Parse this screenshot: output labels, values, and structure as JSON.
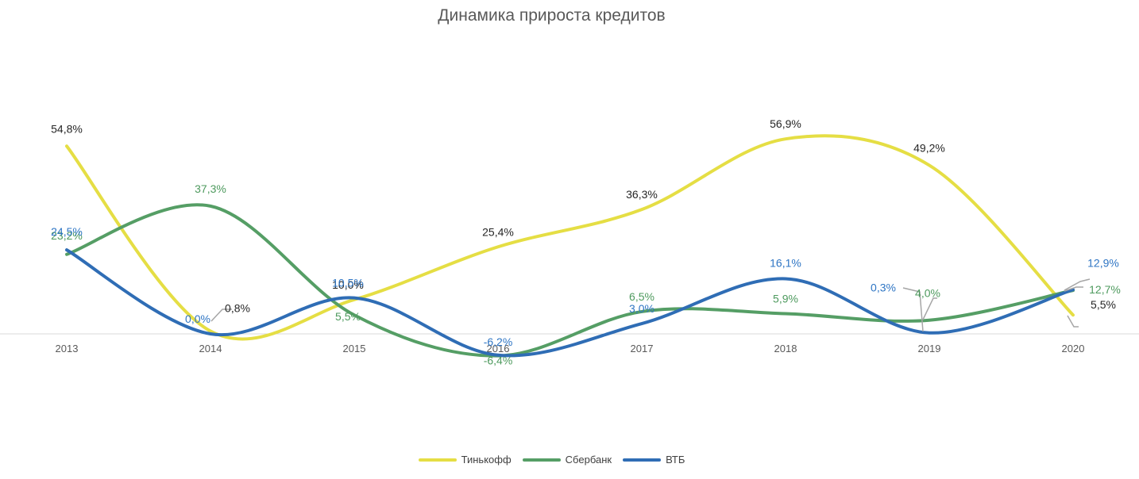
{
  "chart_data": {
    "type": "line",
    "title": "Динамика прироста кредитов",
    "xlabel": "",
    "ylabel": "",
    "categories": [
      "2013",
      "2014",
      "2015",
      "2016",
      "2017",
      "2018",
      "2019",
      "2020"
    ],
    "ylim": [
      -8,
      62
    ],
    "grid": false,
    "legend": "bottom",
    "smooth": true,
    "series": [
      {
        "name": "Тинькофф",
        "color": "#E5DE44",
        "label_color": "#262626",
        "values": [
          54.8,
          0.8,
          10.0,
          25.4,
          36.3,
          56.9,
          49.2,
          5.5
        ],
        "labels": [
          "54,8%",
          "0,8%",
          "10,0%",
          "25,4%",
          "36,3%",
          "56,9%",
          "49,2%",
          "5,5%"
        ]
      },
      {
        "name": "Сбербанк",
        "color": "#559E65",
        "label_color": "#4E9A5E",
        "values": [
          23.2,
          37.3,
          5.5,
          -6.4,
          6.5,
          5.9,
          4.0,
          12.7
        ],
        "labels": [
          "23,2%",
          "37,3%",
          "5,5%",
          "-6,4%",
          "6,5%",
          "5,9%",
          "4,0%",
          "12,7%"
        ]
      },
      {
        "name": "ВТБ",
        "color": "#2F6DB5",
        "label_color": "#2E75C4",
        "values": [
          24.5,
          0.0,
          10.5,
          -6.2,
          3.0,
          16.1,
          0.3,
          12.9
        ],
        "labels": [
          "24,5%",
          "0,0%",
          "10,5%",
          "-6,2%",
          "3,0%",
          "16,1%",
          "0,3%",
          "12,9%"
        ]
      }
    ]
  }
}
